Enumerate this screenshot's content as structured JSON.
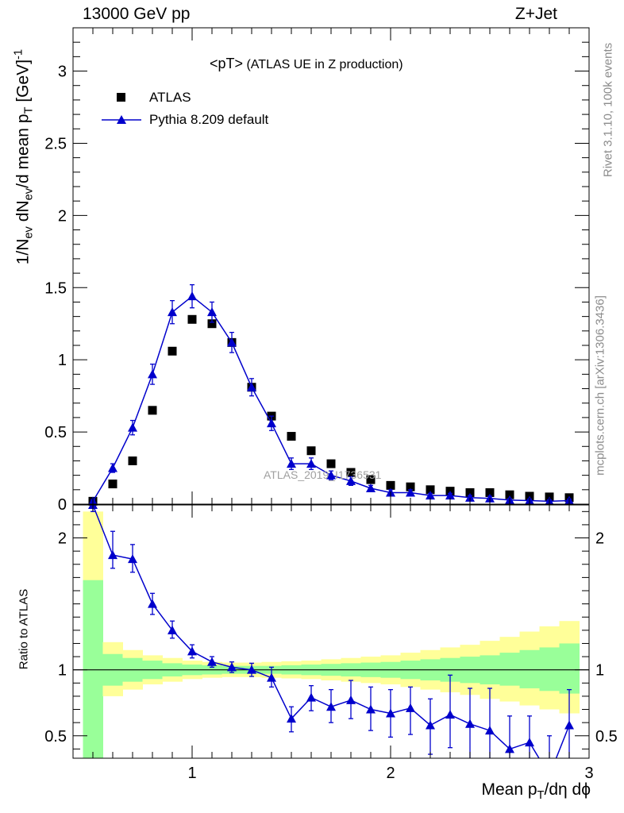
{
  "header": {
    "left": "13000 GeV pp",
    "right": "Z+Jet"
  },
  "title": {
    "main": "<pT>",
    "detail": " (ATLAS UE in Z production)"
  },
  "side_text": {
    "rivet": "Rivet 3.1.10,  100k events",
    "source": "mcplots.cern.ch [arXiv:1306.3436]"
  },
  "watermark": "ATLAS_2019_I1736531",
  "upper_ylabel": {
    "base": "1/N",
    "sub1": "ev",
    "mid1": " dN",
    "sub2": "ev",
    "mid2": "/d mean p",
    "sub3": "T",
    "mid3": " [GeV]",
    "sup": "-1"
  },
  "lower_ylabel": "Ratio to ATLAS",
  "xlabel": {
    "base": "Mean p",
    "sub": "T",
    "rest": "/dη dϕ"
  },
  "legend": {
    "data_label": "ATLAS",
    "mc_label": "Pythia 8.209 default"
  },
  "colors": {
    "mc": "#0000cc",
    "data": "#000000",
    "band_inner": "#99ff99",
    "band_outer": "#ffff99"
  },
  "chart_data": [
    {
      "type": "scatter",
      "xlim": [
        0.4,
        3.0
      ],
      "ylim": [
        0,
        3.3
      ],
      "x_ticks": [
        1,
        2,
        3
      ],
      "y_ticks": [
        0,
        0.5,
        1,
        1.5,
        2,
        2.5,
        3
      ],
      "y_tick_labels": [
        "0",
        "0.5",
        "1",
        "1.5",
        "2",
        "2.5",
        "3"
      ],
      "x": [
        0.5,
        0.6,
        0.7,
        0.8,
        0.9,
        1.0,
        1.1,
        1.2,
        1.3,
        1.4,
        1.5,
        1.6,
        1.7,
        1.8,
        1.9,
        2.0,
        2.1,
        2.2,
        2.3,
        2.4,
        2.5,
        2.6,
        2.7,
        2.8,
        2.9
      ],
      "series": [
        {
          "name": "ATLAS",
          "marker": "square",
          "values": [
            0.02,
            0.14,
            0.3,
            0.65,
            1.06,
            1.28,
            1.25,
            1.12,
            0.81,
            0.61,
            0.47,
            0.37,
            0.28,
            0.22,
            0.17,
            0.13,
            0.12,
            0.1,
            0.09,
            0.08,
            0.08,
            0.065,
            0.055,
            0.05,
            0.045
          ]
        },
        {
          "name": "Pythia 8.209 default",
          "marker": "triangle",
          "values": [
            0.02,
            0.25,
            0.53,
            0.9,
            1.33,
            1.44,
            1.33,
            1.12,
            0.81,
            0.56,
            0.28,
            0.28,
            0.2,
            0.16,
            0.11,
            0.08,
            0.08,
            0.06,
            0.06,
            0.045,
            0.04,
            0.028,
            0.025,
            0.02,
            0.025
          ],
          "errors": [
            0.01,
            0.03,
            0.05,
            0.07,
            0.08,
            0.08,
            0.07,
            0.07,
            0.06,
            0.05,
            0.04,
            0.04,
            0.03,
            0.03,
            0.02,
            0.02,
            0.02,
            0.015,
            0.015,
            0.015,
            0.015,
            0.01,
            0.01,
            0.01,
            0.01
          ]
        }
      ]
    },
    {
      "type": "line",
      "ylabel": "Ratio to ATLAS",
      "xlim": [
        0.4,
        3.0
      ],
      "ylim": [
        0.33,
        2.25
      ],
      "x_ticks": [
        1,
        2,
        3
      ],
      "x_tick_labels": [
        "1",
        "2",
        "3"
      ],
      "y_ticks": [
        0.5,
        1,
        2
      ],
      "y_tick_labels": [
        "0.5",
        "1",
        "2"
      ],
      "bands": {
        "edges": [
          0.45,
          0.55,
          0.65,
          0.75,
          0.85,
          0.95,
          1.05,
          1.15,
          1.25,
          1.35,
          1.45,
          1.55,
          1.65,
          1.75,
          1.85,
          1.95,
          2.05,
          2.15,
          2.25,
          2.35,
          2.45,
          2.55,
          2.65,
          2.75,
          2.85,
          2.95
        ],
        "inner_low": [
          0.33,
          0.88,
          0.91,
          0.93,
          0.95,
          0.96,
          0.965,
          0.97,
          0.97,
          0.97,
          0.965,
          0.96,
          0.955,
          0.95,
          0.945,
          0.94,
          0.93,
          0.92,
          0.91,
          0.9,
          0.89,
          0.88,
          0.86,
          0.84,
          0.82
        ],
        "inner_high": [
          1.68,
          1.12,
          1.09,
          1.07,
          1.05,
          1.04,
          1.035,
          1.03,
          1.03,
          1.03,
          1.035,
          1.04,
          1.045,
          1.05,
          1.055,
          1.06,
          1.07,
          1.08,
          1.09,
          1.1,
          1.11,
          1.13,
          1.15,
          1.17,
          1.2
        ],
        "outer_low": [
          0.33,
          0.8,
          0.85,
          0.89,
          0.91,
          0.93,
          0.94,
          0.945,
          0.945,
          0.94,
          0.935,
          0.93,
          0.92,
          0.91,
          0.9,
          0.89,
          0.87,
          0.85,
          0.83,
          0.81,
          0.78,
          0.76,
          0.73,
          0.7,
          0.67
        ],
        "outer_high": [
          2.2,
          1.21,
          1.15,
          1.11,
          1.09,
          1.07,
          1.06,
          1.055,
          1.055,
          1.06,
          1.065,
          1.07,
          1.08,
          1.09,
          1.1,
          1.11,
          1.13,
          1.15,
          1.17,
          1.19,
          1.22,
          1.25,
          1.29,
          1.33,
          1.37
        ]
      },
      "series": [
        {
          "name": "Pythia 8.209 default",
          "x": [
            0.5,
            0.6,
            0.7,
            0.8,
            0.9,
            1.0,
            1.1,
            1.2,
            1.3,
            1.4,
            1.5,
            1.6,
            1.7,
            1.8,
            1.9,
            2.0,
            2.1,
            2.2,
            2.3,
            2.4,
            2.5,
            2.6,
            2.7,
            2.8,
            2.9
          ],
          "values": [
            2.25,
            1.87,
            1.84,
            1.5,
            1.3,
            1.14,
            1.06,
            1.02,
            1.0,
            0.94,
            0.63,
            0.79,
            0.72,
            0.77,
            0.7,
            0.67,
            0.71,
            0.58,
            0.66,
            0.59,
            0.54,
            0.4,
            0.45,
            0.2,
            0.58
          ],
          "err_low": [
            0.05,
            0.1,
            0.1,
            0.08,
            0.06,
            0.05,
            0.04,
            0.04,
            0.05,
            0.07,
            0.1,
            0.1,
            0.12,
            0.14,
            0.16,
            0.18,
            0.2,
            0.22,
            0.25,
            0.27,
            0.3,
            0.3,
            0.3,
            0.3,
            0.3
          ],
          "err_high": [
            0.05,
            0.18,
            0.11,
            0.08,
            0.07,
            0.05,
            0.04,
            0.04,
            0.05,
            0.08,
            0.09,
            0.09,
            0.13,
            0.15,
            0.17,
            0.18,
            0.16,
            0.2,
            0.3,
            0.27,
            0.32,
            0.25,
            0.2,
            0.3,
            0.27
          ]
        }
      ]
    }
  ]
}
